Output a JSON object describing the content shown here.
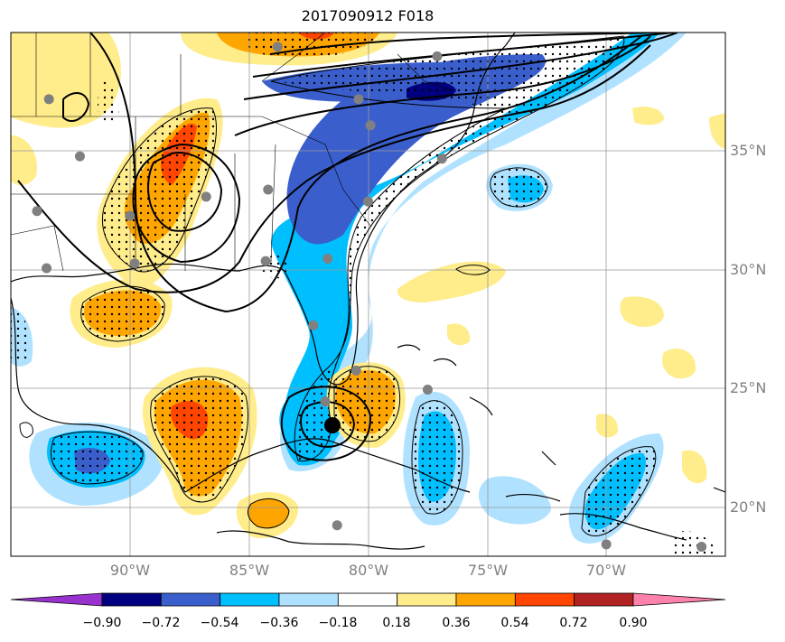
{
  "title": "2017090912 F018",
  "lat_labels": [
    "35°N",
    "30°N",
    "25°N",
    "20°N"
  ],
  "lon_labels": [
    "90°W",
    "85°W",
    "80°W",
    "75°W",
    "70°W"
  ],
  "colorbar": {
    "ticks": [
      "−0.90",
      "−0.72",
      "−0.54",
      "−0.36",
      "−0.18",
      "0.18",
      "0.36",
      "0.54",
      "0.72",
      "0.90"
    ],
    "colors": [
      "#9932cc",
      "#000080",
      "#3a5fcd",
      "#00bfff",
      "#b0e2ff",
      "#ffffff",
      "#ffec8b",
      "#ffa500",
      "#ff4500",
      "#b22222",
      "#ff82ab"
    ]
  },
  "map": {
    "extent": {
      "lon": [
        -95,
        -65
      ],
      "lat": [
        18,
        40
      ]
    },
    "storm_center": {
      "lon": -81.5,
      "lat": 23.5
    },
    "stations": [
      {
        "lon": -83.8,
        "lat": 39.4
      },
      {
        "lon": -77.1,
        "lat": 39.0
      },
      {
        "lon": -93.4,
        "lat": 37.2
      },
      {
        "lon": -80.4,
        "lat": 37.2
      },
      {
        "lon": -79.9,
        "lat": 36.1
      },
      {
        "lon": -92.1,
        "lat": 34.8
      },
      {
        "lon": -76.9,
        "lat": 34.7
      },
      {
        "lon": -84.2,
        "lat": 33.4
      },
      {
        "lon": -86.8,
        "lat": 33.1
      },
      {
        "lon": -80.0,
        "lat": 32.9
      },
      {
        "lon": -93.9,
        "lat": 32.5
      },
      {
        "lon": -90.0,
        "lat": 32.3
      },
      {
        "lon": -89.8,
        "lat": 30.3
      },
      {
        "lon": -93.5,
        "lat": 30.1
      },
      {
        "lon": -84.3,
        "lat": 30.4
      },
      {
        "lon": -81.7,
        "lat": 30.5
      },
      {
        "lon": -82.3,
        "lat": 27.7
      },
      {
        "lon": -80.5,
        "lat": 25.8
      },
      {
        "lon": -81.8,
        "lat": 24.5
      },
      {
        "lon": -77.5,
        "lat": 25.0
      },
      {
        "lon": -81.3,
        "lat": 19.3
      },
      {
        "lon": -70.0,
        "lat": 18.5
      },
      {
        "lon": -66.0,
        "lat": 18.4
      }
    ]
  }
}
